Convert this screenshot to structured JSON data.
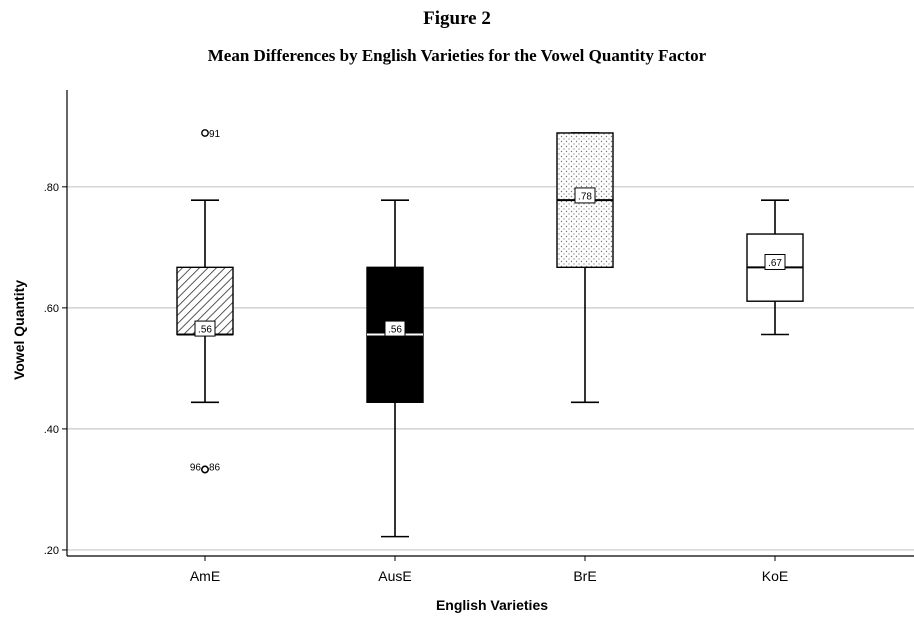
{
  "figure": {
    "label": "Figure 2",
    "title": "Mean Differences by English Varieties for the Vowel Quantity Factor"
  },
  "chart_data": {
    "type": "boxplot",
    "xlabel": "English Varieties",
    "ylabel": "Vowel Quantity",
    "ylim": [
      0.19,
      0.96
    ],
    "yticks": [
      0.2,
      0.4,
      0.6,
      0.8
    ],
    "ytick_labels": [
      ".20",
      ".40",
      ".60",
      ".80"
    ],
    "grid": true,
    "categories": [
      "AmE",
      "AusE",
      "BrE",
      "KoE"
    ],
    "boxes": [
      {
        "category": "AmE",
        "min": 0.444,
        "q1": 0.556,
        "median": 0.556,
        "q3": 0.667,
        "max": 0.778,
        "mean_label": ".56",
        "mean": 0.56,
        "fill": "hatch",
        "outliers": [
          {
            "value": 0.889,
            "label": "91"
          },
          {
            "value": 0.333,
            "label": "96"
          },
          {
            "value": 0.333,
            "label": "86"
          }
        ]
      },
      {
        "category": "AusE",
        "min": 0.222,
        "q1": 0.444,
        "median": 0.556,
        "q3": 0.667,
        "max": 0.778,
        "mean_label": ".56",
        "mean": 0.56,
        "fill": "black",
        "outliers": []
      },
      {
        "category": "BrE",
        "min": 0.444,
        "q1": 0.667,
        "median": 0.778,
        "q3": 0.889,
        "max": 0.889,
        "mean_label": ".78",
        "mean": 0.78,
        "fill": "dots",
        "outliers": []
      },
      {
        "category": "KoE",
        "min": 0.556,
        "q1": 0.611,
        "median": 0.667,
        "q3": 0.722,
        "max": 0.778,
        "mean_label": ".67",
        "mean": 0.67,
        "fill": "white",
        "outliers": []
      }
    ]
  },
  "colors": {
    "axis": "#000000",
    "grid": "#c8c8c8",
    "box_stroke": "#000000",
    "black_fill": "#000000",
    "white_fill": "#ffffff"
  }
}
